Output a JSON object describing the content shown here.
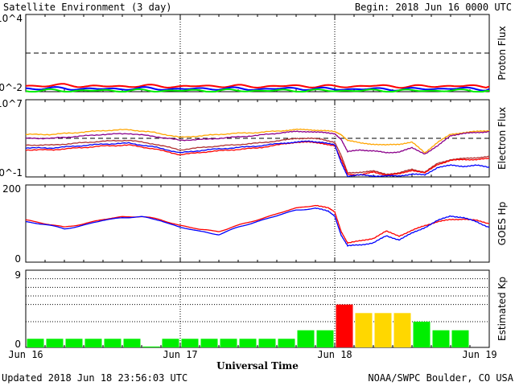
{
  "header": {
    "title": "Satellite Environment (3 day)",
    "begin": "Begin:  2018 Jun 16 0000 UTC"
  },
  "footer": {
    "updated": "Updated 2018 Jun 18 23:56:03 UTC",
    "credit": "NOAA/SWPC Boulder, CO USA"
  },
  "colors": {
    "red": "#ff0000",
    "blue": "#0000ff",
    "green": "#00ee00",
    "orange": "#ffa500",
    "purple": "#8b008b",
    "dark_red": "#b03030",
    "yellow": "#ffd700"
  },
  "chart_data": [
    {
      "type": "line",
      "panel": "proton",
      "ylabel": "Proton Flux",
      "ytick_labels": [
        "10^4",
        "10^-2"
      ],
      "ylim_log10": [
        -2,
        4
      ],
      "threshold_log10": 1,
      "x": [
        0,
        6,
        12,
        18,
        24,
        30,
        36,
        42,
        48,
        54,
        60,
        66,
        72
      ],
      "series": [
        {
          "color": "red",
          "values_log10": [
            -1.55,
            -1.5,
            -1.6,
            -1.55,
            -1.6,
            -1.55,
            -1.6,
            -1.55,
            -1.6,
            -1.55,
            -1.6,
            -1.55,
            -1.6
          ]
        },
        {
          "color": "blue",
          "values_log10": [
            -1.75,
            -1.75,
            -1.8,
            -1.75,
            -1.8,
            -1.75,
            -1.8,
            -1.75,
            -1.8,
            -1.8,
            -1.8,
            -1.75,
            -1.8
          ]
        },
        {
          "color": "green",
          "values_log10": [
            -1.92,
            -1.92,
            -1.92,
            -1.92,
            -1.92,
            -1.92,
            -1.92,
            -1.92,
            -1.92,
            -1.92,
            -1.92,
            -1.92,
            -1.92
          ]
        }
      ]
    },
    {
      "type": "line",
      "panel": "electron",
      "ylabel": "Electron Flux",
      "ytick_labels": [
        "10^7",
        "10^-1"
      ],
      "ylim_log10": [
        -1,
        7
      ],
      "threshold_log10": 3,
      "x": [
        0,
        4,
        8,
        12,
        16,
        20,
        24,
        28,
        32,
        36,
        40,
        42,
        44,
        46,
        48,
        49,
        50,
        52,
        54,
        56,
        58,
        60,
        62,
        64,
        66,
        68,
        70,
        72
      ],
      "series": [
        {
          "color": "orange",
          "values_log10": [
            3.4,
            3.4,
            3.6,
            3.8,
            3.9,
            3.6,
            3.1,
            3.3,
            3.5,
            3.6,
            3.8,
            3.9,
            3.9,
            3.8,
            3.7,
            3.4,
            2.8,
            2.5,
            2.4,
            2.3,
            2.4,
            2.6,
            1.5,
            2.6,
            3.4,
            3.6,
            3.7,
            3.8
          ]
        },
        {
          "color": "purple",
          "values_log10": [
            3.0,
            3.0,
            3.2,
            3.4,
            3.5,
            3.2,
            2.8,
            2.9,
            3.1,
            3.3,
            3.6,
            3.7,
            3.7,
            3.6,
            3.5,
            2.9,
            1.6,
            1.8,
            1.7,
            1.5,
            1.6,
            2.0,
            1.4,
            2.2,
            3.3,
            3.5,
            3.6,
            3.7
          ]
        },
        {
          "color": "dark_red",
          "values_log10": [
            2.3,
            2.3,
            2.5,
            2.7,
            2.8,
            2.4,
            1.8,
            2.1,
            2.3,
            2.5,
            2.8,
            3.0,
            3.0,
            2.9,
            2.6,
            1.2,
            -0.6,
            -0.5,
            -0.4,
            -0.7,
            -0.6,
            -0.2,
            -0.5,
            0.4,
            0.8,
            0.9,
            1.0,
            1.1
          ]
        },
        {
          "color": "red",
          "values_log10": [
            1.8,
            1.8,
            2.0,
            2.2,
            2.3,
            1.9,
            1.3,
            1.6,
            1.8,
            2.0,
            2.4,
            2.6,
            2.6,
            2.5,
            2.2,
            0.8,
            -0.7,
            -0.8,
            -0.5,
            -0.8,
            -0.7,
            -0.3,
            -0.6,
            0.3,
            0.7,
            0.8,
            0.8,
            0.9
          ]
        },
        {
          "color": "blue",
          "values_log10": [
            2.0,
            2.0,
            2.2,
            2.4,
            2.5,
            2.1,
            1.5,
            1.8,
            2.0,
            2.2,
            2.5,
            2.6,
            2.7,
            2.6,
            2.3,
            0.5,
            -0.9,
            -0.8,
            -0.9,
            -0.9,
            -0.9,
            -0.7,
            -0.8,
            0.0,
            0.2,
            0.1,
            0.2,
            0.0
          ]
        }
      ]
    },
    {
      "type": "line",
      "panel": "goes_hp",
      "ylabel": "GOES Hp",
      "ytick_labels": [
        "200",
        "0"
      ],
      "ylim": [
        0,
        200
      ],
      "x": [
        0,
        3,
        6,
        9,
        12,
        15,
        18,
        21,
        24,
        27,
        30,
        33,
        36,
        39,
        42,
        45,
        47,
        48,
        49,
        50,
        52,
        54,
        56,
        58,
        60,
        62,
        64,
        66,
        68,
        70,
        72
      ],
      "series": [
        {
          "color": "red",
          "values": [
            110,
            100,
            90,
            100,
            110,
            118,
            118,
            110,
            95,
            85,
            80,
            95,
            110,
            125,
            140,
            148,
            140,
            130,
            80,
            50,
            55,
            62,
            80,
            68,
            82,
            95,
            105,
            110,
            112,
            108,
            100
          ]
        },
        {
          "color": "blue",
          "values": [
            105,
            98,
            86,
            96,
            108,
            116,
            117,
            108,
            90,
            80,
            72,
            90,
            106,
            120,
            135,
            140,
            132,
            120,
            70,
            42,
            45,
            50,
            68,
            58,
            75,
            90,
            108,
            120,
            115,
            105,
            90
          ]
        }
      ]
    },
    {
      "type": "bar",
      "panel": "kp",
      "ylabel": "Estimated Kp",
      "ytick_labels": [
        "9",
        "0"
      ],
      "ylim": [
        0,
        9
      ],
      "x": [
        1.5,
        4.5,
        7.5,
        10.5,
        13.5,
        16.5,
        19.5,
        22.5,
        25.5,
        28.5,
        31.5,
        34.5,
        37.5,
        40.5,
        43.5,
        46.5,
        49.5,
        52.5,
        55.5,
        58.5,
        61.5,
        64.5,
        67.5,
        70.5
      ],
      "values": [
        1,
        1,
        1,
        1,
        1,
        1,
        0.1,
        1,
        1,
        1,
        1,
        1,
        1,
        1,
        2,
        2,
        5,
        4,
        4,
        4,
        3,
        2,
        2,
        0
      ],
      "value_colors": [
        "green",
        "green",
        "green",
        "green",
        "green",
        "green",
        "green",
        "green",
        "green",
        "green",
        "green",
        "green",
        "green",
        "green",
        "green",
        "green",
        "red",
        "yellow",
        "yellow",
        "yellow",
        "green",
        "green",
        "green",
        "green"
      ]
    }
  ],
  "xaxis": {
    "tick_labels": [
      "Jun 16",
      "Jun 17",
      "Jun 18",
      "Jun 19"
    ],
    "label": "Universal Time"
  }
}
